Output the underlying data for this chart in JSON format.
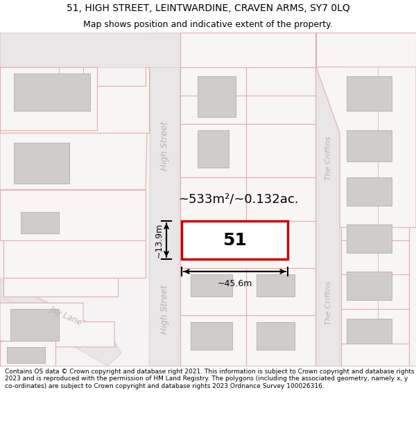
{
  "title_line1": "51, HIGH STREET, LEINTWARDINE, CRAVEN ARMS, SY7 0LQ",
  "title_line2": "Map shows position and indicative extent of the property.",
  "footer_text": "Contains OS data © Crown copyright and database right 2021. This information is subject to Crown copyright and database rights 2023 and is reproduced with the permission of HM Land Registry. The polygons (including the associated geometry, namely x, y co-ordinates) are subject to Crown copyright and database rights 2023 Ordnance Survey 100026316.",
  "area_text": "~533m²/~0.132ac.",
  "number_label": "51",
  "dim_width": "~45.6m",
  "dim_height": "~13.9m",
  "map_bg": "#f5f3f3",
  "plot_outline_color": "#cc0000",
  "plot_fill": "#ffffff",
  "dim_line_color": "#000000",
  "pink_line_color": "#e8aaaa",
  "road_color": "#e8e6e6",
  "road_edge": "#d0c8c8",
  "gray_bld": "#d0cccc",
  "gray_bld_edge": "#b8b4b4",
  "street_text_color": "#c0b0b0",
  "footer_bg": "#ffffff",
  "title_fontsize": 10,
  "subtitle_fontsize": 9,
  "footer_fontsize": 6.5
}
